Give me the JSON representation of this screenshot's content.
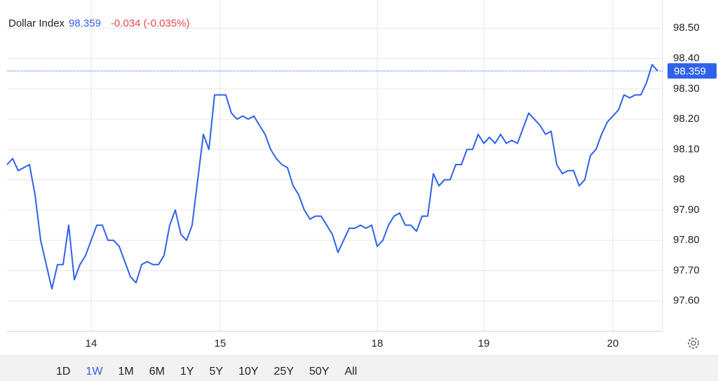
{
  "chart_data": {
    "type": "line",
    "change": "-0.034 (-0.035%)",
    "last": 98.359,
    "categories": [
      null,
      null,
      null,
      null,
      null,
      null,
      null,
      null,
      null,
      null,
      null,
      null,
      null,
      null,
      null,
      "14",
      null,
      null,
      null,
      null,
      null,
      null,
      null,
      null,
      null,
      null,
      null,
      null,
      null,
      null,
      null,
      null,
      null,
      null,
      null,
      null,
      null,
      null,
      "15",
      null,
      null,
      null,
      null,
      null,
      null,
      null,
      null,
      null,
      null,
      null,
      null,
      null,
      null,
      null,
      null,
      null,
      null,
      null,
      null,
      null,
      null,
      null,
      null,
      null,
      null,
      null,
      "18",
      null,
      null,
      null,
      null,
      null,
      null,
      null,
      null,
      null,
      null,
      null,
      null,
      null,
      null,
      null,
      null,
      null,
      null,
      "19",
      null,
      null,
      null,
      null,
      null,
      null,
      null,
      null,
      null,
      null,
      null,
      null,
      null,
      null,
      null,
      null,
      null,
      null,
      null,
      null,
      null,
      null,
      "20",
      null,
      null,
      null,
      null,
      null,
      null,
      null,
      null
    ],
    "series": [
      {
        "name": "Dollar Index",
        "color": "#2f62ea",
        "values": [
          98.05,
          98.07,
          98.03,
          98.04,
          98.05,
          97.95,
          97.8,
          97.72,
          97.64,
          97.72,
          97.72,
          97.85,
          97.67,
          97.72,
          97.75,
          97.8,
          97.85,
          97.85,
          97.8,
          97.8,
          97.78,
          97.73,
          97.68,
          97.66,
          97.72,
          97.73,
          97.72,
          97.72,
          97.75,
          97.85,
          97.9,
          97.82,
          97.8,
          97.85,
          98.0,
          98.15,
          98.1,
          98.28,
          98.28,
          98.28,
          98.22,
          98.2,
          98.21,
          98.2,
          98.21,
          98.18,
          98.15,
          98.1,
          98.07,
          98.05,
          98.04,
          97.98,
          97.95,
          97.9,
          97.87,
          97.88,
          97.88,
          97.85,
          97.82,
          97.76,
          97.8,
          97.84,
          97.84,
          97.85,
          97.84,
          97.85,
          97.78,
          97.8,
          97.85,
          97.88,
          97.89,
          97.85,
          97.85,
          97.83,
          97.88,
          97.88,
          98.02,
          97.98,
          98.0,
          98.0,
          98.05,
          98.05,
          98.1,
          98.1,
          98.15,
          98.12,
          98.14,
          98.12,
          98.15,
          98.12,
          98.13,
          98.12,
          98.17,
          98.22,
          98.2,
          98.18,
          98.15,
          98.16,
          98.05,
          98.02,
          98.03,
          98.03,
          97.98,
          98.0,
          98.08,
          98.1,
          98.15,
          98.19,
          98.21,
          98.23,
          98.28,
          98.27,
          98.28,
          98.28,
          98.32,
          98.38,
          98.359
        ]
      }
    ],
    "ylim": [
      97.5,
      98.6
    ],
    "yticks": [
      {
        "value": 97.6,
        "label": "97.60"
      },
      {
        "value": 97.7,
        "label": "97.70"
      },
      {
        "value": 97.8,
        "label": "97.80"
      },
      {
        "value": 97.9,
        "label": "97.90"
      },
      98,
      {
        "value": 98.1,
        "label": "98.10"
      },
      {
        "value": 98.2,
        "label": "98.20"
      },
      {
        "value": 98.3,
        "label": "98.30"
      },
      {
        "value": 98.4,
        "label": "98.40"
      },
      {
        "value": 98.5,
        "label": "98.50"
      }
    ],
    "grid": true,
    "ranges": [
      "1D",
      "1W",
      "1M",
      "6M",
      "1Y",
      "5Y",
      "10Y",
      "25Y",
      "50Y",
      "All"
    ],
    "active_range": "1W"
  }
}
